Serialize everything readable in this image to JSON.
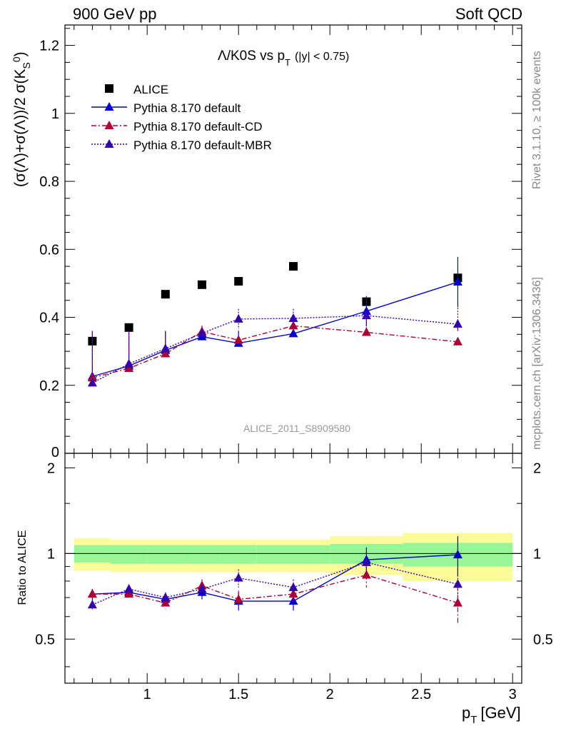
{
  "header": {
    "left": "900 GeV pp",
    "right": "Soft QCD"
  },
  "side_text": {
    "rivet": "Rivet 3.1.10, ≥ 100k events",
    "mcplots": "mcplots.cern.ch [arXiv:1306.3436]"
  },
  "colors": {
    "data": "#000000",
    "default": "#0000cc",
    "cd": "#aa0033",
    "mbr": "#3300aa",
    "band_inner": "#98f598",
    "band_outer": "#fbfb99",
    "watermark": "#999999"
  },
  "chart_data": [
    {
      "type": "scatter",
      "panel": "main",
      "title_parts": [
        "Λ/K0S vs p",
        "T",
        "(|y| < 0.75)"
      ],
      "ylabel": "(σ(Λ)+σ(Λ))/2 σ(K",
      "watermark": "ALICE_2011_S8909580",
      "xlim": [
        0.55,
        3.05
      ],
      "ylim": [
        0,
        1.26
      ],
      "yticks": [
        0,
        0.2,
        0.4,
        0.6,
        0.8,
        1,
        1.2
      ],
      "ytick_labels": [
        "0",
        "0.2",
        "0.4",
        "0.6",
        "0.8",
        "1",
        "1.2"
      ],
      "legend": {
        "placement": "top-left"
      },
      "series": [
        {
          "name": "ALICE",
          "key": "data",
          "style": "square",
          "dash": "",
          "x": [
            0.7,
            0.9,
            1.1,
            1.3,
            1.5,
            1.8,
            2.2,
            2.7
          ],
          "y": [
            0.33,
            0.37,
            0.468,
            0.496,
            0.506,
            0.55,
            0.446,
            0.516
          ],
          "err": [
            0,
            0,
            0,
            0,
            0,
            0,
            0,
            0
          ]
        },
        {
          "name": "Pythia 8.170 default",
          "key": "default",
          "style": "triangle",
          "dash": "",
          "x": [
            0.7,
            0.9,
            1.1,
            1.3,
            1.5,
            1.8,
            2.2,
            2.7
          ],
          "y": [
            0.226,
            0.257,
            0.303,
            0.343,
            0.324,
            0.352,
            0.418,
            0.504
          ],
          "err": [
            0.008,
            0.009,
            0.012,
            0.018,
            0.022,
            0.024,
            0.044,
            0.074
          ]
        },
        {
          "name": "Pythia 8.170 default-CD",
          "key": "cd",
          "style": "triangle",
          "dash": "7,3,2,3",
          "x": [
            0.7,
            0.9,
            1.1,
            1.3,
            1.5,
            1.8,
            2.2,
            2.7
          ],
          "y": [
            0.222,
            0.25,
            0.293,
            0.358,
            0.333,
            0.375,
            0.356,
            0.328
          ],
          "err": [
            0.008,
            0.009,
            0.011,
            0.018,
            0.023,
            0.025,
            0.036,
            0.042
          ]
        },
        {
          "name": "Pythia 8.170 default-MBR",
          "key": "mbr",
          "style": "triangle",
          "dash": "2,2",
          "x": [
            0.7,
            0.9,
            1.1,
            1.3,
            1.5,
            1.8,
            2.2,
            2.7
          ],
          "y": [
            0.207,
            0.263,
            0.308,
            0.353,
            0.395,
            0.397,
            0.405,
            0.38
          ],
          "err": [
            0.008,
            0.01,
            0.012,
            0.018,
            0.03,
            0.028,
            0.04,
            0.048
          ]
        }
      ]
    },
    {
      "type": "scatter",
      "panel": "ratio",
      "ylabel": "Ratio to ALICE",
      "xlabel_parts": [
        "p",
        "T",
        "[GeV]"
      ],
      "xlim": [
        0.55,
        3.05
      ],
      "ylim": [
        0.35,
        2.25
      ],
      "xticks": [
        1,
        1.5,
        2,
        2.5,
        3
      ],
      "xtick_labels": [
        "1",
        "1.5",
        "2",
        "2.5",
        "3"
      ],
      "yticks": [
        0.5,
        1,
        2
      ],
      "ytick_labels": [
        "0.5",
        "1",
        "2"
      ],
      "bands": [
        {
          "xlo": 0.6,
          "xhi": 0.8,
          "inner": [
            0.93,
            1.07
          ],
          "outer": [
            0.87,
            1.13
          ]
        },
        {
          "xlo": 0.8,
          "xhi": 1.0,
          "inner": [
            0.92,
            1.07
          ],
          "outer": [
            0.86,
            1.12
          ]
        },
        {
          "xlo": 1.0,
          "xhi": 1.2,
          "inner": [
            0.92,
            1.07
          ],
          "outer": [
            0.86,
            1.12
          ]
        },
        {
          "xlo": 1.2,
          "xhi": 1.4,
          "inner": [
            0.92,
            1.07
          ],
          "outer": [
            0.86,
            1.12
          ]
        },
        {
          "xlo": 1.4,
          "xhi": 1.6,
          "inner": [
            0.92,
            1.07
          ],
          "outer": [
            0.86,
            1.12
          ]
        },
        {
          "xlo": 1.6,
          "xhi": 2.0,
          "inner": [
            0.92,
            1.07
          ],
          "outer": [
            0.86,
            1.12
          ]
        },
        {
          "xlo": 2.0,
          "xhi": 2.4,
          "inner": [
            0.92,
            1.08
          ],
          "outer": [
            0.84,
            1.15
          ]
        },
        {
          "xlo": 2.4,
          "xhi": 3.0,
          "inner": [
            0.9,
            1.09
          ],
          "outer": [
            0.8,
            1.18
          ]
        }
      ],
      "series": [
        {
          "name": "Pythia 8.170 default",
          "key": "default",
          "style": "triangle",
          "dash": "",
          "x": [
            0.7,
            0.9,
            1.1,
            1.3,
            1.5,
            1.8,
            2.2,
            2.7
          ],
          "y": [
            0.72,
            0.73,
            0.69,
            0.73,
            0.68,
            0.68,
            0.95,
            0.99
          ],
          "err": [
            0.03,
            0.03,
            0.03,
            0.04,
            0.05,
            0.05,
            0.1,
            0.16
          ]
        },
        {
          "name": "Pythia 8.170 default-CD",
          "key": "cd",
          "style": "triangle",
          "dash": "7,3,2,3",
          "x": [
            0.7,
            0.9,
            1.1,
            1.3,
            1.5,
            1.8,
            2.2,
            2.7
          ],
          "y": [
            0.72,
            0.72,
            0.67,
            0.77,
            0.69,
            0.72,
            0.84,
            0.67
          ],
          "err": [
            0.03,
            0.03,
            0.03,
            0.04,
            0.05,
            0.05,
            0.08,
            0.1
          ]
        },
        {
          "name": "Pythia 8.170 default-MBR",
          "key": "mbr",
          "style": "triangle",
          "dash": "2,2",
          "x": [
            0.7,
            0.9,
            1.1,
            1.3,
            1.5,
            1.8,
            2.2,
            2.7
          ],
          "y": [
            0.66,
            0.75,
            0.7,
            0.75,
            0.82,
            0.76,
            0.93,
            0.78
          ],
          "err": [
            0.03,
            0.03,
            0.03,
            0.04,
            0.06,
            0.05,
            0.08,
            0.1
          ]
        }
      ]
    }
  ]
}
